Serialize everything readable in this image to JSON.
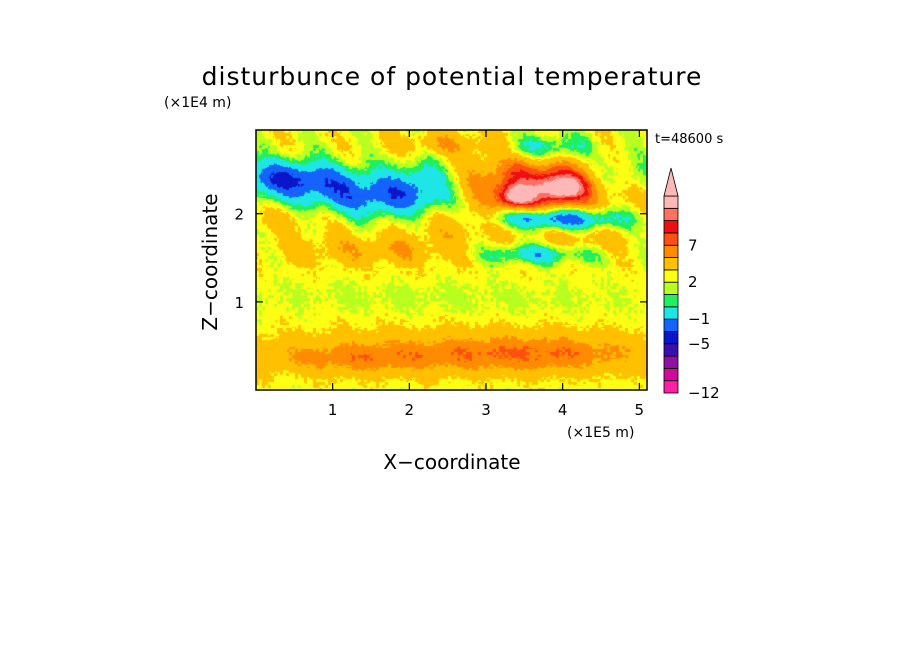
{
  "chart_data": {
    "type": "heatmap",
    "title": "disturbunce of potential temperature",
    "time_label": "t=48600 s",
    "xlabel": "X−coordinate",
    "ylabel": "Z−coordinate",
    "x_unit": "(×1E5 m)",
    "y_unit": "(×1E4 m)",
    "xlim": [
      0,
      5.1
    ],
    "ylim": [
      0,
      2.95
    ],
    "x_ticks": [
      1,
      2,
      3,
      4,
      5
    ],
    "y_ticks": [
      1,
      2
    ],
    "x_tick_labels": [
      "1",
      "2",
      "3",
      "4",
      "5"
    ],
    "y_tick_labels": [
      "1",
      "2"
    ],
    "colorbar": {
      "levels": [
        -12,
        -10.5,
        -9,
        -7.5,
        -5,
        -3,
        -1,
        0,
        1,
        2,
        4,
        5.5,
        7,
        8.5,
        10
      ],
      "colors": [
        "#ff1fa5",
        "#d20a9b",
        "#8f10a3",
        "#3a0fb0",
        "#0a16c8",
        "#1463ff",
        "#1fe6e6",
        "#20f060",
        "#b8ff20",
        "#ffff14",
        "#ffc000",
        "#ff8c00",
        "#ff5010",
        "#ee1010",
        "#ff7060",
        "#ffb8b8"
      ],
      "tick_values": [
        7,
        2,
        -1,
        -5,
        -12
      ],
      "tick_labels": [
        "7",
        "2",
        "−1",
        "−5",
        "−12"
      ],
      "extend_top": true
    },
    "features": [
      {
        "x": 2.5,
        "z": 0.45,
        "value": 2.5,
        "sx": 2.0,
        "sz": 0.18
      },
      {
        "x": 1.2,
        "z": 0.35,
        "value": 2.2,
        "sx": 0.8,
        "sz": 0.12
      },
      {
        "x": 3.7,
        "z": 0.4,
        "value": 2.5,
        "sx": 1.0,
        "sz": 0.15
      },
      {
        "x": 2.5,
        "z": 1.05,
        "value": -0.5,
        "sx": 2.2,
        "sz": 0.12
      },
      {
        "x": 2.5,
        "z": 1.38,
        "value": 0.4,
        "sx": 2.2,
        "sz": 0.1
      },
      {
        "x": 0.4,
        "z": 2.4,
        "value": -6.0,
        "sx": 0.55,
        "sz": 0.15
      },
      {
        "x": 1.5,
        "z": 2.2,
        "value": -5.0,
        "sx": 0.6,
        "sz": 0.18
      },
      {
        "x": 2.2,
        "z": 2.35,
        "value": -3.0,
        "sx": 0.3,
        "sz": 0.2
      },
      {
        "x": 1.6,
        "z": 1.6,
        "value": 2.5,
        "sx": 0.9,
        "sz": 0.12
      },
      {
        "x": 3.7,
        "z": 2.35,
        "value": 6.5,
        "sx": 0.7,
        "sz": 0.22
      },
      {
        "x": 3.4,
        "z": 2.2,
        "value": 8.0,
        "sx": 0.15,
        "sz": 0.08
      },
      {
        "x": 4.0,
        "z": 2.3,
        "value": 7.5,
        "sx": 0.2,
        "sz": 0.1
      },
      {
        "x": 3.9,
        "z": 1.95,
        "value": -6.0,
        "sx": 0.6,
        "sz": 0.08
      },
      {
        "x": 3.6,
        "z": 1.55,
        "value": -3.5,
        "sx": 0.5,
        "sz": 0.08
      },
      {
        "x": 4.3,
        "z": 1.7,
        "value": 1.8,
        "sx": 0.5,
        "sz": 0.08
      },
      {
        "x": 4.7,
        "z": 2.45,
        "value": -2.5,
        "sx": 0.4,
        "sz": 0.15
      },
      {
        "x": 3.8,
        "z": 2.75,
        "value": -3.5,
        "sx": 0.4,
        "sz": 0.1
      },
      {
        "x": 2.5,
        "z": 2.8,
        "value": 2.5,
        "sx": 0.5,
        "sz": 0.1
      },
      {
        "x": 0.5,
        "z": 1.95,
        "value": 1.5,
        "sx": 0.6,
        "sz": 0.12
      },
      {
        "x": 2.6,
        "z": 1.9,
        "value": 2.0,
        "sx": 0.5,
        "sz": 0.12
      }
    ],
    "background_value": 1.4,
    "grid": false,
    "legend": "right"
  }
}
